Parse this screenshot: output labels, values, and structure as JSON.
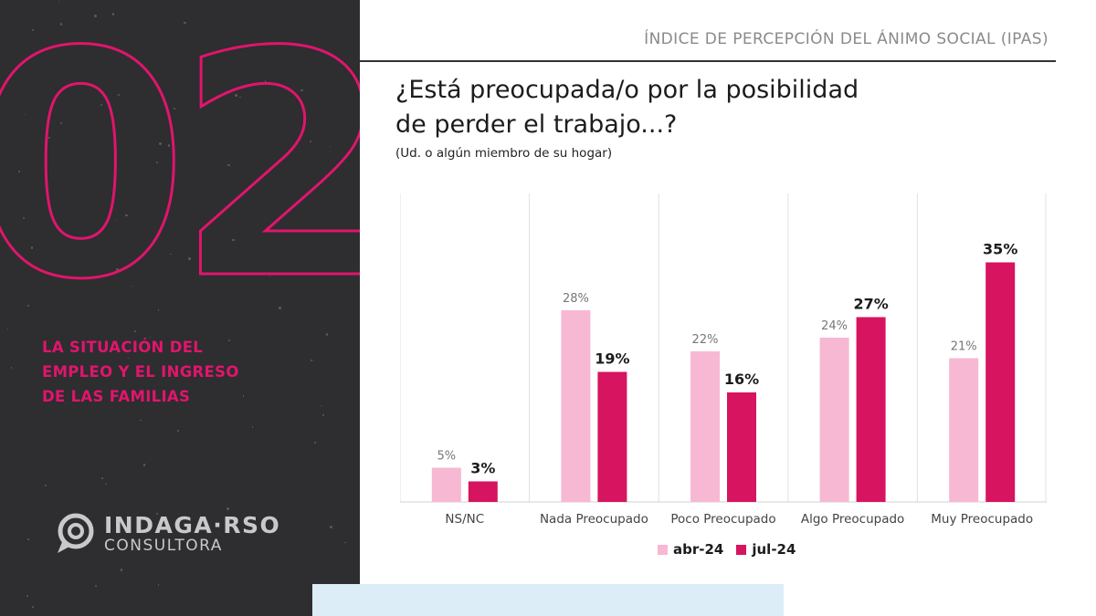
{
  "header": {
    "title": "ÍNDICE DE PERCEPCIÓN DEL ÁNIMO SOCIAL (IPAS)"
  },
  "left_panel": {
    "section_number": "02",
    "section_label_lines": [
      "LA SITUACIÓN DEL",
      "EMPLEO Y EL INGRESO",
      "DE LAS FAMILIAS"
    ],
    "logo": {
      "name": "INDAGA·RSO",
      "subtitle": "CONSULTORA"
    }
  },
  "question": {
    "line1": "¿Está preocupada/o por la posibilidad",
    "line2": "de perder el trabajo...?",
    "note": "(Ud. o algún miembro de su hogar)"
  },
  "colors": {
    "accent": "#e0156c",
    "series_abr": "#f7b8d3",
    "series_jul": "#d6145f",
    "panel_bg": "#2e2d30"
  },
  "chart_data": {
    "type": "bar",
    "categories": [
      "NS/NC",
      "Nada Preocupado",
      "Poco Preocupado",
      "Algo Preocupado",
      "Muy Preocupado"
    ],
    "series": [
      {
        "name": "abr-24",
        "values": [
          5,
          28,
          22,
          24,
          21
        ],
        "labels": [
          "5%",
          "28%",
          "22%",
          "24%",
          "21%"
        ]
      },
      {
        "name": "jul-24",
        "values": [
          3,
          19,
          16,
          27,
          35
        ],
        "labels": [
          "3%",
          "19%",
          "16%",
          "27%",
          "35%"
        ]
      }
    ],
    "ylim": [
      0,
      40
    ],
    "xlabel": "",
    "ylabel": "",
    "legend_position": "bottom-center"
  }
}
